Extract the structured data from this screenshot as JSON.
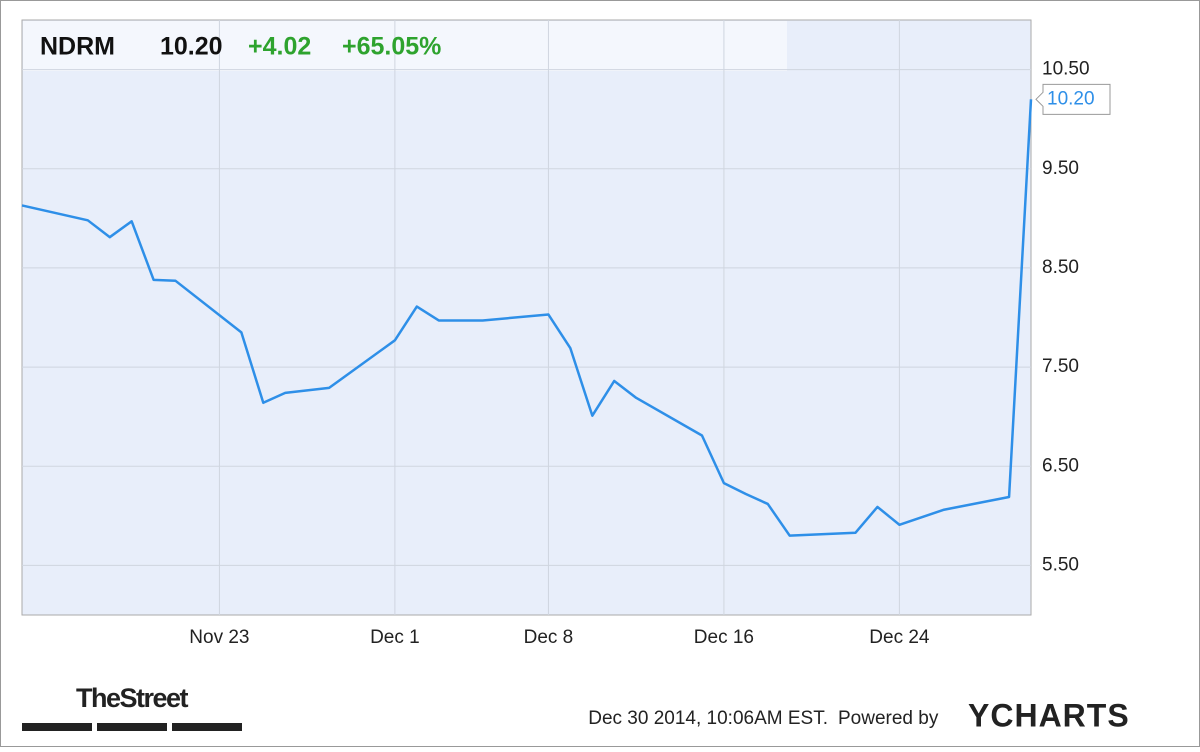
{
  "chart_data": {
    "type": "line",
    "header": {
      "symbol": "NDRM",
      "price": "10.20",
      "change": "+4.02",
      "change_pct": "+65.05%"
    },
    "x": [
      "Nov 14",
      "Nov 17",
      "Nov 18",
      "Nov 19",
      "Nov 20",
      "Nov 21",
      "Nov 24",
      "Nov 25",
      "Nov 26",
      "Nov 28",
      "Dec 1",
      "Dec 2",
      "Dec 3",
      "Dec 5",
      "Dec 8",
      "Dec 9",
      "Dec 10",
      "Dec 11",
      "Dec 12",
      "Dec 15",
      "Dec 16",
      "Dec 17",
      "Dec 18",
      "Dec 19",
      "Dec 22",
      "Dec 23",
      "Dec 24",
      "Dec 26",
      "Dec 29",
      "Dec 30"
    ],
    "series": [
      {
        "name": "NDRM",
        "color": "#2e8fe8",
        "values": [
          9.13,
          8.98,
          8.81,
          8.97,
          8.38,
          8.37,
          7.85,
          7.14,
          7.24,
          7.29,
          7.77,
          8.11,
          7.97,
          7.97,
          8.03,
          7.69,
          7.01,
          7.36,
          7.19,
          6.81,
          6.33,
          6.22,
          6.12,
          5.8,
          5.83,
          6.09,
          5.91,
          6.06,
          6.19,
          10.2
        ]
      }
    ],
    "xlim": [
      "Nov 14",
      "Dec 30"
    ],
    "xticks": [
      "Nov 23",
      "Dec 1",
      "Dec 8",
      "Dec 16",
      "Dec 24"
    ],
    "ylim": [
      5,
      11
    ],
    "yticks": [
      {
        "value": 5.5,
        "label": "5.50"
      },
      {
        "value": 6.5,
        "label": "6.50"
      },
      {
        "value": 7.5,
        "label": "7.50"
      },
      {
        "value": 8.5,
        "label": "8.50"
      },
      {
        "value": 9.5,
        "label": "9.50"
      },
      {
        "value": 10.5,
        "label": "10.50"
      }
    ],
    "grid": true,
    "footer": {
      "source": "TheStreet",
      "timestamp": "Dec 30 2014, 10:06AM EST.",
      "powered": "Powered by",
      "brand": "YCHARTS"
    }
  }
}
